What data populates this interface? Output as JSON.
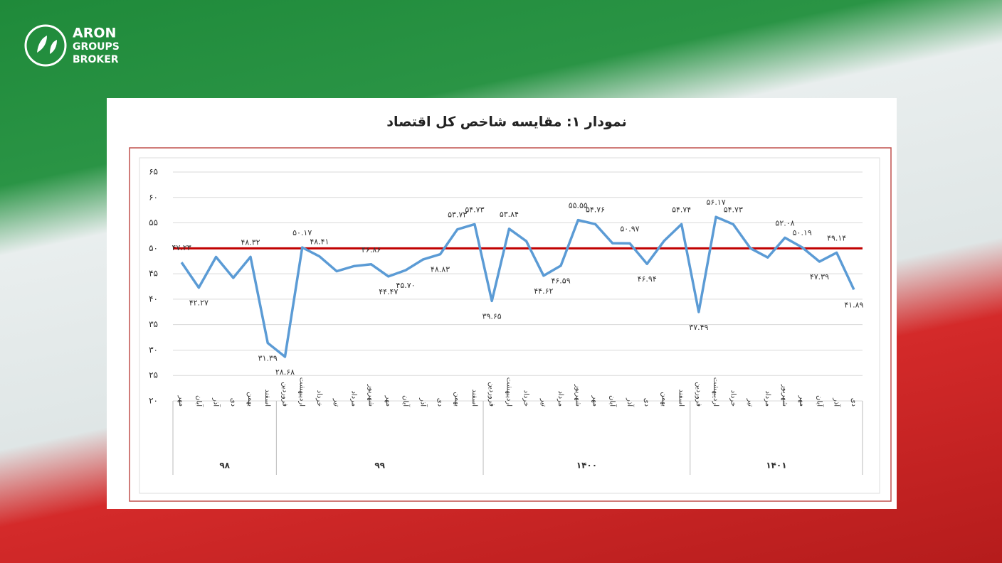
{
  "logo": {
    "line1": "ARON",
    "line2": "GROUPS",
    "line3": "BROKER"
  },
  "chart_data": {
    "type": "line",
    "title": "نمودار ۱: مقایسه شاخص کل اقتصاد",
    "groups": [
      {
        "name": "۹۸",
        "categories": [
          "مهر",
          "آبان",
          "آذر",
          "دی",
          "بهمن",
          "اسفند"
        ]
      },
      {
        "name": "۹۹",
        "categories": [
          "فروردین",
          "اردیبهشت",
          "خرداد",
          "تیر",
          "مرداد",
          "شهریور",
          "مهر",
          "آبان",
          "آذر",
          "دی",
          "بهمن",
          "اسفند"
        ]
      },
      {
        "name": "۱۴۰۰",
        "categories": [
          "فروردین",
          "اردیبهشت",
          "خرداد",
          "تیر",
          "مرداد",
          "شهریور",
          "مهر",
          "آبان",
          "آذر",
          "دی",
          "بهمن",
          "اسفند"
        ]
      },
      {
        "name": "۱۴۰۱",
        "categories": [
          "فروردین",
          "اردیبهشت",
          "خرداد",
          "تیر",
          "مرداد",
          "شهریور",
          "مهر",
          "آبان",
          "آذر",
          "دی"
        ]
      }
    ],
    "values": [
      47.23,
      42.27,
      48.3,
      44.2,
      48.32,
      31.39,
      28.68,
      50.17,
      48.41,
      45.5,
      46.5,
      46.86,
      44.47,
      45.7,
      47.8,
      48.83,
      53.73,
      54.73,
      39.65,
      53.84,
      51.4,
      44.62,
      46.59,
      55.55,
      54.76,
      51.0,
      50.97,
      46.94,
      51.5,
      54.74,
      37.49,
      56.17,
      54.73,
      50.0,
      48.2,
      52.08,
      50.19,
      47.39,
      49.14,
      41.89
    ],
    "value_labels": [
      "۴۷.۲۳",
      "۴۲.۲۷",
      null,
      null,
      "۴۸.۳۲",
      "۳۱.۳۹",
      "۲۸.۶۸",
      "۵۰.۱۷",
      "۴۸.۴۱",
      null,
      null,
      "۴۶.۸۶",
      "۴۴.۴۷",
      "۴۵.۷۰",
      null,
      "۴۸.۸۳",
      "۵۳.۷۳",
      "۵۴.۷۳",
      "۳۹.۶۵",
      "۵۳.۸۴",
      null,
      "۴۴.۶۲",
      "۴۶.۵۹",
      "۵۵.۵۵",
      "۵۴.۷۶",
      null,
      "۵۰.۹۷",
      "۴۶.۹۴",
      null,
      "۵۴.۷۴",
      "۳۷.۴۹",
      "۵۶.۱۷",
      "۵۴.۷۳",
      null,
      null,
      "۵۲.۰۸",
      "۵۰.۱۹",
      "۴۷.۳۹",
      "۴۹.۱۴",
      "۴۱.۸۹"
    ],
    "color": "#5b9bd5",
    "ylim": [
      20,
      65
    ],
    "yticks": [
      {
        "value": 20,
        "label": "۲۰"
      },
      {
        "value": 25,
        "label": "۲۵"
      },
      {
        "value": 30,
        "label": "۳۰"
      },
      {
        "value": 35,
        "label": "۳۵"
      },
      {
        "value": 40,
        "label": "۴۰"
      },
      {
        "value": 45,
        "label": "۴۵"
      },
      {
        "value": 50,
        "label": "۵۰"
      },
      {
        "value": 55,
        "label": "۵۵"
      },
      {
        "value": 60,
        "label": "۶۰"
      },
      {
        "value": 65,
        "label": "۶۵"
      }
    ],
    "grid": true,
    "reference_line": {
      "value": 50,
      "color": "#c00000"
    }
  }
}
